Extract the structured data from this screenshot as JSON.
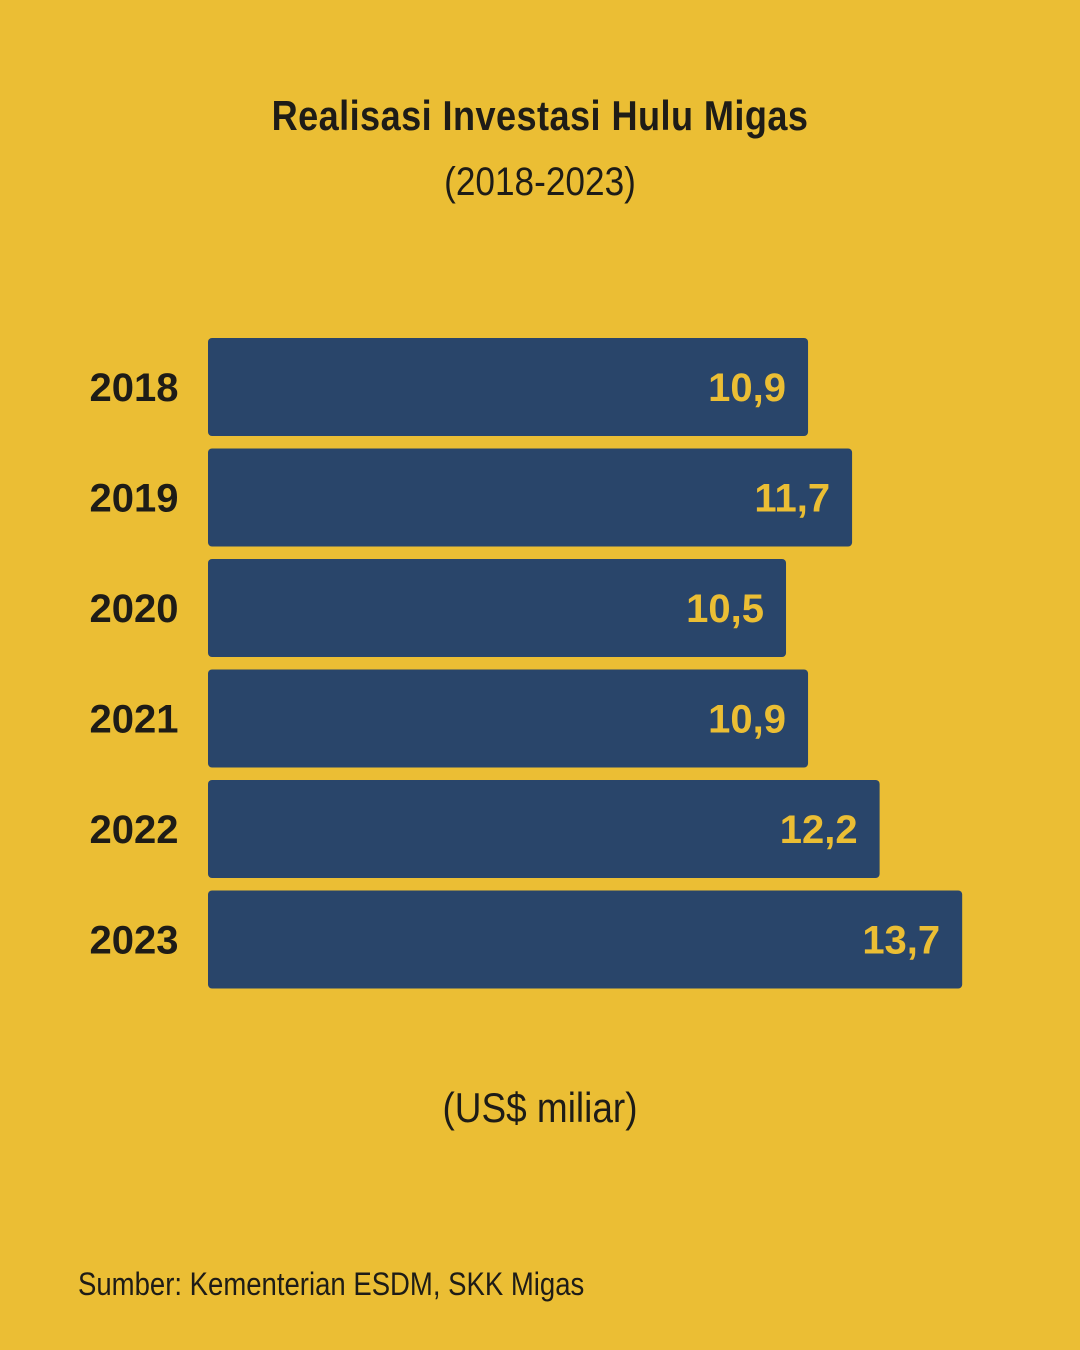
{
  "header": {
    "title": "Realisasi Investasi Hulu Migas",
    "subtitle": "(2018-2023)"
  },
  "unit_label": "(US$ miliar)",
  "source": "Sumber: Kementerian ESDM, SKK Migas",
  "colors": {
    "background": "#EBBE34",
    "bar": "#29456A",
    "bar_label": "#EBBE34",
    "text": "#1E1C17"
  },
  "chart_data": {
    "type": "bar",
    "orientation": "horizontal",
    "categories": [
      "2018",
      "2019",
      "2020",
      "2021",
      "2022",
      "2023"
    ],
    "values": [
      10.9,
      11.7,
      10.5,
      10.9,
      12.2,
      13.7
    ],
    "value_labels": [
      "10,9",
      "11,7",
      "10,5",
      "10,9",
      "12,2",
      "13,7"
    ],
    "title": "Realisasi Investasi Hulu Migas",
    "subtitle": "(2018-2023)",
    "unit": "(US$ miliar)",
    "grid": false,
    "legend": "none"
  }
}
